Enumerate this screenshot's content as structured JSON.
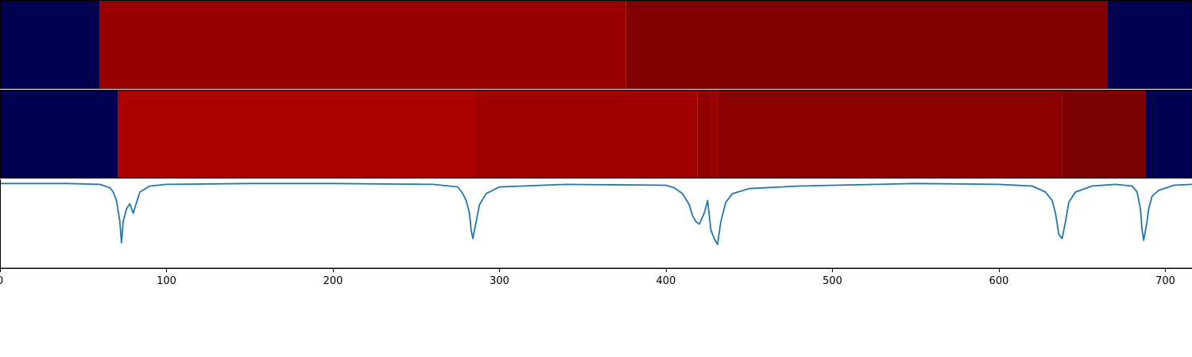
{
  "chart_data": {
    "type": "line",
    "title": "",
    "xlabel": "",
    "ylabel": "",
    "xlim": [
      0,
      716
    ],
    "ylim": [
      -1,
      0.05
    ],
    "x_ticks": [
      0,
      100,
      200,
      300,
      400,
      500,
      600,
      700
    ],
    "grid": false,
    "legend": "none",
    "segment_tracks": [
      {
        "segments": [
          {
            "start": 0,
            "end": 60,
            "color": "#000050"
          },
          {
            "start": 60,
            "end": 376,
            "color": "#990000"
          },
          {
            "start": 376,
            "end": 665,
            "color": "#800000"
          },
          {
            "start": 665,
            "end": 716,
            "color": "#000050"
          }
        ]
      },
      {
        "segments": [
          {
            "start": 0,
            "end": 71,
            "color": "#000050"
          },
          {
            "start": 71,
            "end": 284,
            "color": "#ad0000"
          },
          {
            "start": 284,
            "end": 419,
            "color": "#a00000"
          },
          {
            "start": 419,
            "end": 427,
            "color": "#900000"
          },
          {
            "start": 427,
            "end": 431,
            "color": "#9a0000"
          },
          {
            "start": 431,
            "end": 638,
            "color": "#8a0000"
          },
          {
            "start": 638,
            "end": 688,
            "color": "#7c0000"
          },
          {
            "start": 688,
            "end": 716,
            "color": "#000050"
          }
        ]
      }
    ],
    "series": [
      {
        "color": "#1f77b4",
        "x": [
          0,
          40,
          60,
          66,
          68,
          70,
          72,
          73,
          74,
          76,
          78,
          80,
          84,
          90,
          100,
          150,
          200,
          260,
          275,
          278,
          280,
          282,
          283,
          284,
          286,
          288,
          292,
          300,
          340,
          400,
          405,
          410,
          414,
          416,
          418,
          420,
          423,
          425,
          427,
          429,
          431,
          433,
          436,
          440,
          450,
          480,
          550,
          600,
          620,
          628,
          632,
          634,
          636,
          638,
          640,
          642,
          646,
          656,
          670,
          680,
          683,
          685,
          686,
          687,
          689,
          690,
          692,
          696,
          705,
          716
        ],
        "y": [
          0.0,
          0.0,
          -0.01,
          -0.05,
          -0.1,
          -0.2,
          -0.45,
          -0.7,
          -0.45,
          -0.3,
          -0.24,
          -0.35,
          -0.1,
          -0.03,
          -0.01,
          0.0,
          0.0,
          -0.01,
          -0.04,
          -0.12,
          -0.2,
          -0.35,
          -0.55,
          -0.65,
          -0.45,
          -0.25,
          -0.12,
          -0.04,
          -0.01,
          -0.02,
          -0.05,
          -0.12,
          -0.25,
          -0.38,
          -0.45,
          -0.48,
          -0.35,
          -0.2,
          -0.55,
          -0.65,
          -0.72,
          -0.45,
          -0.22,
          -0.12,
          -0.06,
          -0.03,
          0.0,
          -0.01,
          -0.03,
          -0.1,
          -0.2,
          -0.35,
          -0.6,
          -0.65,
          -0.45,
          -0.22,
          -0.1,
          -0.03,
          -0.01,
          -0.03,
          -0.1,
          -0.3,
          -0.55,
          -0.67,
          -0.45,
          -0.3,
          -0.15,
          -0.08,
          -0.02,
          -0.01
        ]
      }
    ],
    "reference_lines": [
      {
        "y": -1.0,
        "color": "#d62728"
      }
    ]
  }
}
